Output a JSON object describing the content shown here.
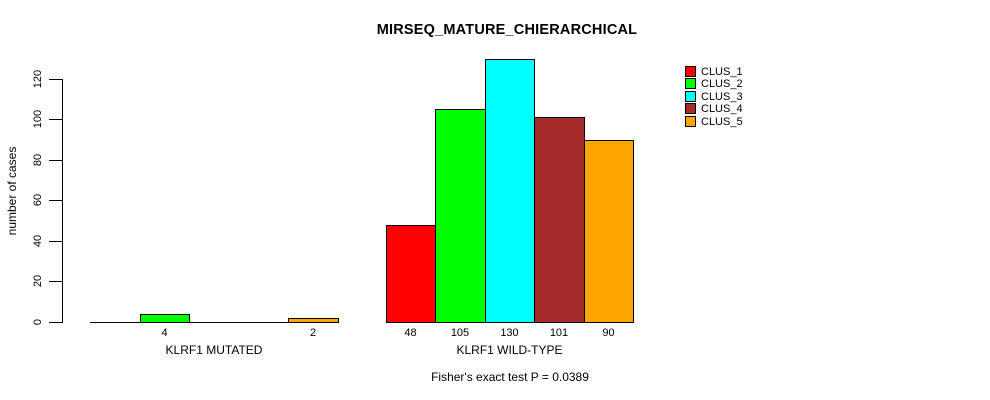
{
  "chart_data": {
    "type": "bar",
    "title": "MIRSEQ_MATURE_CHIERARCHICAL",
    "ylabel": "number of cases",
    "xlabel": "",
    "y_ticks": [
      0,
      20,
      40,
      60,
      80,
      100,
      120
    ],
    "ylim": [
      0,
      130
    ],
    "grid": false,
    "legend_position": "top-right",
    "categories": [
      "KLRF1 MUTATED",
      "KLRF1 WILD-TYPE"
    ],
    "series": [
      {
        "name": "CLUS_1",
        "color": "#ff0000",
        "values": [
          0,
          48
        ]
      },
      {
        "name": "CLUS_2",
        "color": "#00ff00",
        "values": [
          4,
          105
        ]
      },
      {
        "name": "CLUS_3",
        "color": "#00ffff",
        "values": [
          0,
          130
        ]
      },
      {
        "name": "CLUS_4",
        "color": "#a52a2a",
        "values": [
          0,
          101
        ]
      },
      {
        "name": "CLUS_5",
        "color": "#ffa500",
        "values": [
          2,
          90
        ]
      }
    ],
    "bar_value_labels": {
      "KLRF1 MUTATED": [
        "",
        "4",
        "",
        "",
        "2"
      ],
      "KLRF1 WILD-TYPE": [
        "48",
        "105",
        "130",
        "101",
        "90"
      ]
    },
    "annotation": "Fisher's exact test P = 0.0389",
    "colors": {
      "background": "#ffffff",
      "axis": "#000000",
      "text": "#000000",
      "bar_border": "#000000"
    }
  }
}
